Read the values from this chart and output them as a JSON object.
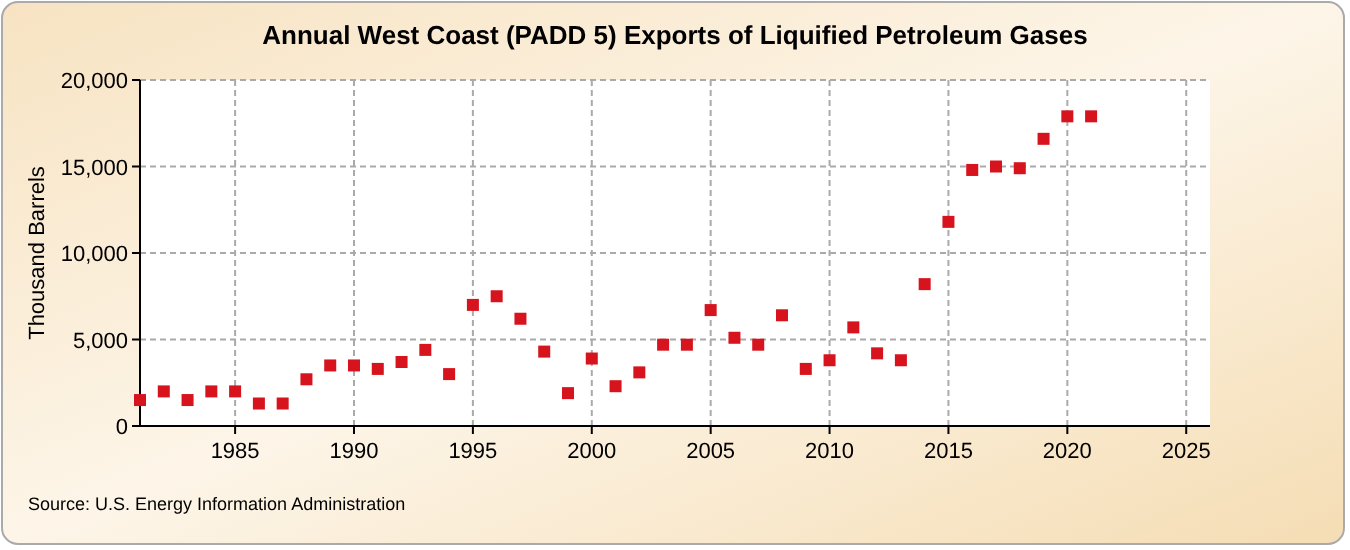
{
  "chart_data": {
    "type": "scatter",
    "title": "Annual West Coast (PADD 5) Exports of Liquified Petroleum Gases",
    "ylabel": "Thousand Barrels",
    "x": [
      1981,
      1982,
      1983,
      1984,
      1985,
      1986,
      1987,
      1988,
      1989,
      1990,
      1991,
      1992,
      1993,
      1994,
      1995,
      1996,
      1997,
      1998,
      1999,
      2000,
      2001,
      2002,
      2003,
      2004,
      2005,
      2006,
      2007,
      2008,
      2009,
      2010,
      2011,
      2012,
      2013,
      2014,
      2015,
      2016,
      2017,
      2018,
      2019,
      2020,
      2021
    ],
    "series": [
      {
        "color": "#d7141e",
        "values": [
          1500,
          2000,
          1500,
          2000,
          2000,
          1300,
          1300,
          2700,
          3500,
          3500,
          3300,
          3700,
          4400,
          3000,
          7000,
          7500,
          6200,
          4300,
          1900,
          3900,
          2300,
          3100,
          4700,
          4700,
          6700,
          5100,
          4700,
          6400,
          3300,
          3800,
          5700,
          4200,
          3800,
          8200,
          11800,
          14800,
          15000,
          14900,
          16600,
          17900,
          17900
        ]
      }
    ],
    "xlim": [
      1981,
      2026
    ],
    "xticks": [
      1985,
      1990,
      1995,
      2000,
      2005,
      2010,
      2015,
      2020,
      2025
    ],
    "ylim": [
      0,
      20000
    ],
    "yticks": [
      {
        "value": 0,
        "label": "0"
      },
      {
        "value": 5000,
        "label": "5,000"
      },
      {
        "value": 10000,
        "label": "10,000"
      },
      {
        "value": 15000,
        "label": "15,000"
      },
      {
        "value": 20000,
        "label": "20,000"
      }
    ],
    "grid": true,
    "marker": "square",
    "annotations": [
      "Source: U.S. Energy Information Administration"
    ]
  }
}
